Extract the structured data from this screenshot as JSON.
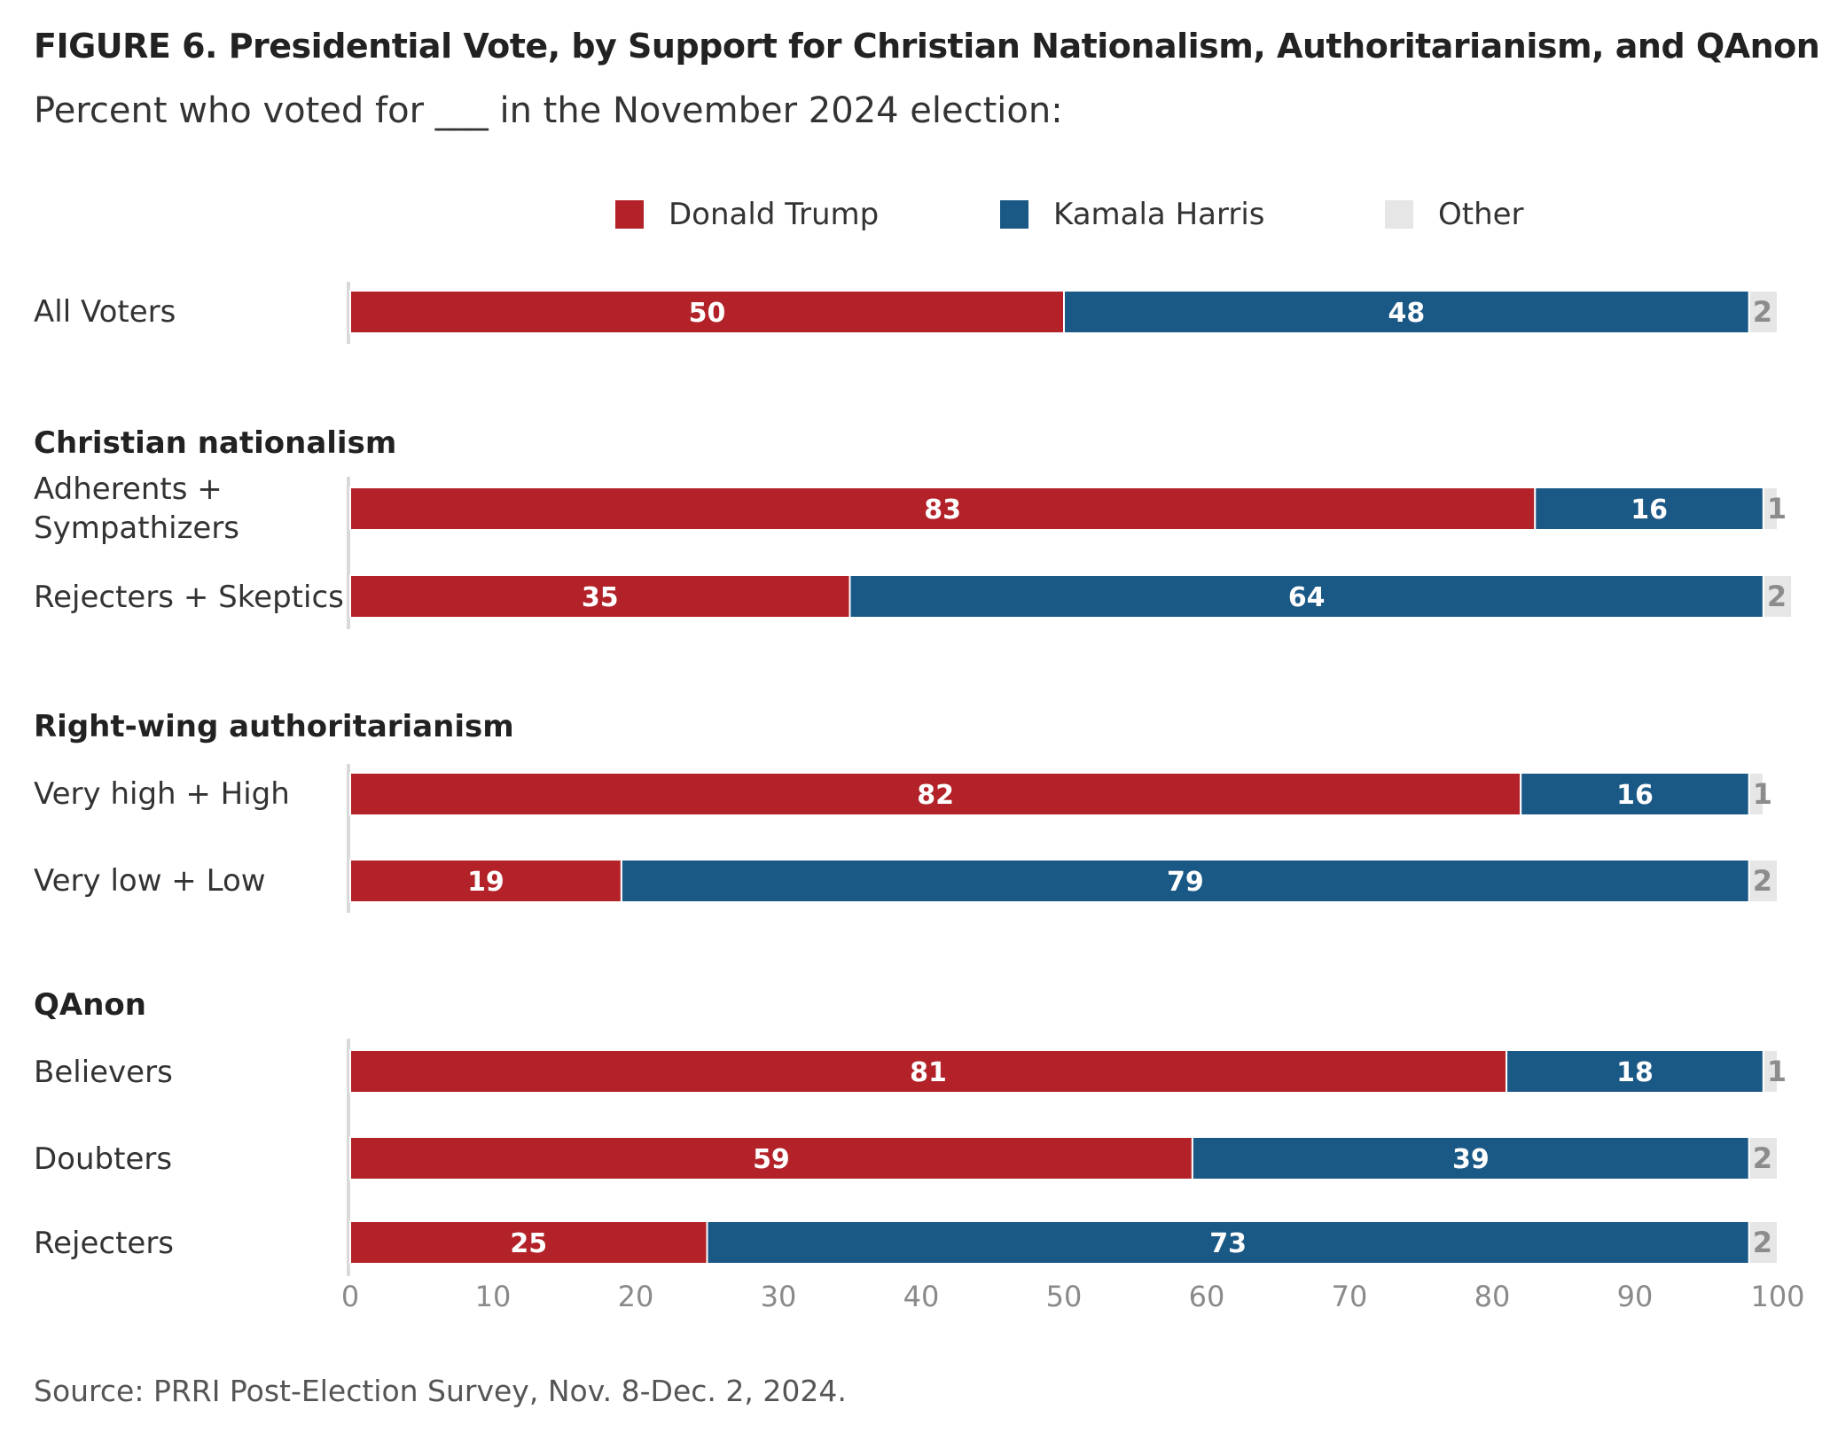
{
  "title": "FIGURE 6.  Presidential Vote, by Support for Christian Nationalism, Authoritarianism, and QAnon",
  "subtitle": "Percent who voted for ___ in the November 2024 election:",
  "source": "Source: PRRI Post-Election Survey, Nov. 8-Dec. 2, 2024.",
  "legend": [
    {
      "name": "Donald Trump",
      "color": "#b22228"
    },
    {
      "name": "Kamala Harris",
      "color": "#1a5886"
    },
    {
      "name": "Other",
      "color": "#e6e6e6"
    }
  ],
  "chart_data": {
    "type": "bar",
    "orientation": "horizontal",
    "stacked": true,
    "xlim": [
      0,
      100
    ],
    "xticks": [
      "0",
      "10",
      "20",
      "30",
      "40",
      "50",
      "60",
      "70",
      "80",
      "90",
      "100"
    ],
    "legend_position": "top",
    "groups": [
      {
        "title": "",
        "rows": [
          {
            "label": "All Voters",
            "values": [
              50,
              48,
              2
            ]
          }
        ]
      },
      {
        "title": "Christian nationalism",
        "rows": [
          {
            "label": "Adherents + Sympathizers",
            "values": [
              83,
              16,
              1
            ]
          },
          {
            "label": "Rejecters + Skeptics",
            "values": [
              35,
              64,
              2
            ]
          }
        ]
      },
      {
        "title": "Right-wing authoritarianism",
        "rows": [
          {
            "label": "Very high + High",
            "values": [
              82,
              16,
              1
            ]
          },
          {
            "label": "Very low + Low",
            "values": [
              19,
              79,
              2
            ]
          }
        ]
      },
      {
        "title": "QAnon",
        "rows": [
          {
            "label": "Believers",
            "values": [
              81,
              18,
              1
            ]
          },
          {
            "label": "Doubters",
            "values": [
              59,
              39,
              2
            ]
          },
          {
            "label": "Rejecters",
            "values": [
              25,
              73,
              2
            ]
          }
        ]
      }
    ]
  }
}
